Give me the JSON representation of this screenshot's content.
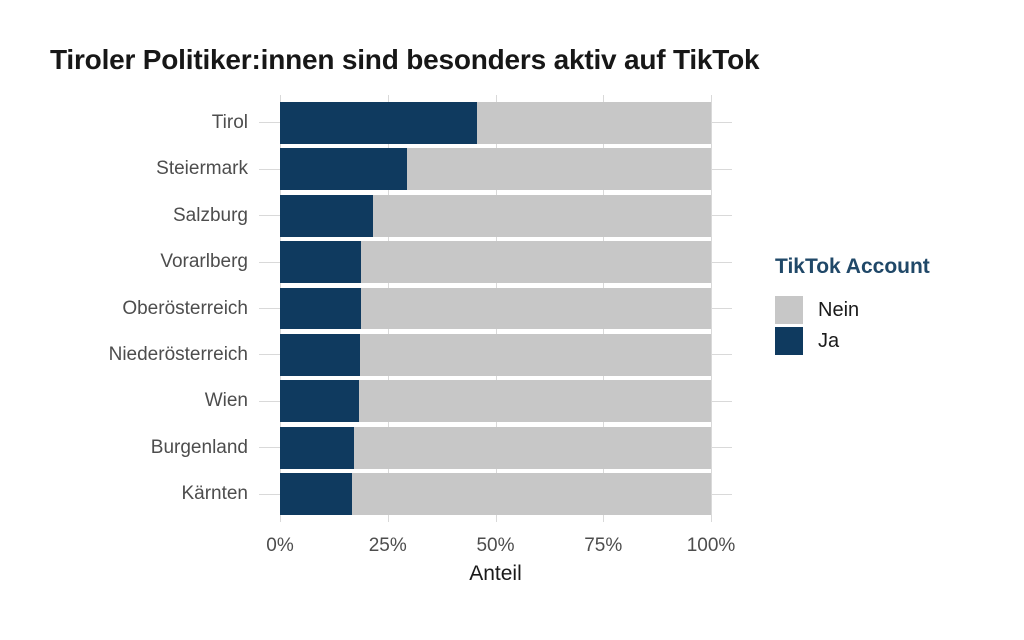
{
  "chart_data": {
    "type": "bar",
    "orientation": "horizontal",
    "stacked": true,
    "title": "Tiroler Politiker:innen sind besonders aktiv auf TikTok",
    "xlabel": "Anteil",
    "ylabel": "",
    "categories": [
      "Tirol",
      "Steiermark",
      "Salzburg",
      "Vorarlberg",
      "Oberösterreich",
      "Niederösterreich",
      "Wien",
      "Burgenland",
      "Kärnten"
    ],
    "series": [
      {
        "name": "Ja",
        "color": "#0f3a5f",
        "values": [
          45.8,
          29.4,
          21.6,
          18.8,
          18.7,
          18.6,
          18.4,
          17.1,
          16.8
        ]
      },
      {
        "name": "Nein",
        "color": "#c7c7c7",
        "values": [
          54.2,
          70.6,
          78.4,
          81.2,
          81.3,
          81.4,
          81.6,
          82.9,
          83.2
        ]
      }
    ],
    "x_ticks": [
      "0%",
      "25%",
      "50%",
      "75%",
      "100%"
    ],
    "x_tick_values": [
      0,
      25,
      50,
      75,
      100
    ],
    "xlim": [
      0,
      100
    ],
    "grid": "major-only",
    "legend_title": "TikTok Account",
    "legend_position": "right",
    "legend_items": [
      {
        "label": "Nein",
        "color": "#c7c7c7"
      },
      {
        "label": "Ja",
        "color": "#0f3a5f"
      }
    ]
  },
  "colors": {
    "background": "#ffffff",
    "bar_ja": "#0f3a5f",
    "bar_nein": "#c7c7c7",
    "gridline": "#d9d9d9",
    "title_text": "#171717",
    "axis_text": "#4d4d4d",
    "axis_title_text": "#1a1a1a",
    "legend_title_text": "#204868",
    "legend_label_text": "#1a1a1a"
  }
}
